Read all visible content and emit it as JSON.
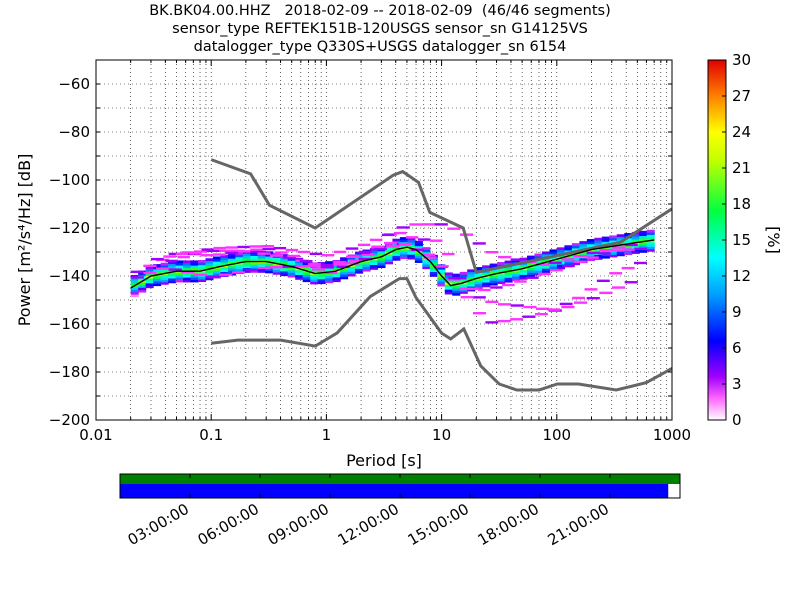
{
  "chart_data": {
    "type": "heatmap",
    "title_lines": [
      "BK.BK04.00.HHZ   2018-02-09 -- 2018-02-09  (46/46 segments)",
      "sensor_type REFTEK151B-120USGS sensor_sn G14125VS",
      "datalogger_type Q330S+USGS datalogger_sn 6154"
    ],
    "xlabel": "Period [s]",
    "ylabel": "Power [m²/s⁴/Hz] [dB]",
    "xscale": "log",
    "xlim": [
      0.01,
      1000
    ],
    "ylim": [
      -200,
      -50
    ],
    "x_ticks": [
      "0.01",
      "0.1",
      "1",
      "10",
      "100",
      "1000"
    ],
    "y_ticks": [
      "−60",
      "−80",
      "−100",
      "−120",
      "−140",
      "−160",
      "−180",
      "−200"
    ],
    "grid": true,
    "colorbar": {
      "label": "[%]",
      "range": [
        0,
        30
      ],
      "ticks": [
        "0",
        "3",
        "6",
        "9",
        "12",
        "15",
        "18",
        "21",
        "24",
        "27",
        "30"
      ]
    },
    "noise_model_high": {
      "x": [
        0.1,
        0.22,
        0.32,
        0.8,
        3.8,
        4.6,
        6.3,
        7.9,
        15.4,
        20,
        354.8,
        1000
      ],
      "y": [
        -91.5,
        -97.4,
        -110.5,
        -120,
        -98,
        -96.5,
        -101,
        -113.5,
        -120,
        -138.5,
        -126,
        -112
      ]
    },
    "noise_model_low": {
      "x": [
        0.1,
        0.17,
        0.4,
        0.8,
        1.24,
        2.4,
        4.3,
        5,
        6,
        10,
        12,
        15.6,
        21.9,
        31.6,
        45,
        70,
        101,
        154,
        328,
        600,
        1000
      ],
      "y": [
        -168,
        -166.7,
        -166.7,
        -169.2,
        -163.7,
        -148.6,
        -141.1,
        -141.1,
        -149,
        -163.8,
        -166.2,
        -162.1,
        -177.5,
        -185,
        -187.5,
        -187.5,
        -185,
        -185,
        -187.5,
        -184.4,
        -178.5
      ]
    },
    "mode_curve": {
      "x": [
        0.02,
        0.03,
        0.05,
        0.08,
        0.12,
        0.2,
        0.3,
        0.5,
        0.8,
        1.2,
        2,
        3,
        4,
        5,
        6,
        8,
        10,
        12,
        15,
        20,
        30,
        50,
        100,
        200,
        500,
        700
      ],
      "y": [
        -145,
        -140,
        -138,
        -138,
        -136,
        -134,
        -134,
        -136,
        -139,
        -138,
        -134,
        -132,
        -129,
        -128,
        -129,
        -134,
        -140,
        -144,
        -143,
        -141,
        -139,
        -137,
        -133,
        -129,
        -126,
        -125
      ]
    },
    "outlier_paths": [
      {
        "x": [
          0.02,
          0.05,
          0.1,
          0.2,
          0.5,
          1,
          2,
          4,
          8,
          12,
          20,
          30,
          50,
          100,
          200,
          500
        ],
        "y": [
          -140,
          -131,
          -130,
          -130,
          -133,
          -137,
          -131,
          -126,
          -132,
          -141,
          -149,
          -152,
          -153,
          -155,
          -150,
          -142
        ]
      },
      {
        "x": [
          0.03,
          0.06,
          0.1,
          0.3,
          0.6,
          1,
          3,
          5,
          8,
          12,
          18,
          25,
          40,
          80,
          150,
          300,
          600
        ],
        "y": [
          -134,
          -131,
          -132,
          -129,
          -133,
          -140,
          -129,
          -127,
          -133,
          -139,
          -152,
          -160,
          -159,
          -156,
          -150,
          -140,
          -134
        ]
      },
      {
        "x": [
          0.02,
          0.04,
          0.1,
          0.3,
          1,
          2,
          4,
          6,
          10,
          15,
          30,
          80,
          200,
          500
        ],
        "y": [
          -142,
          -137,
          -141,
          -137,
          -136,
          -135,
          -121,
          -119,
          -119,
          -122,
          -132,
          -136,
          -131,
          -127
        ]
      },
      {
        "x": [
          0.04,
          0.1,
          0.3,
          1,
          2,
          4,
          6,
          10,
          15,
          20,
          40,
          100,
          300,
          600
        ],
        "y": [
          -135,
          -129,
          -128,
          -132,
          -128,
          -122,
          -125,
          -126,
          -143,
          -147,
          -144,
          -138,
          -130,
          -129
        ]
      }
    ],
    "data_availability": {
      "time_ticks": [
        "03:00:00",
        "06:00:00",
        "09:00:00",
        "12:00:00",
        "15:00:00",
        "18:00:00",
        "21:00:00"
      ],
      "segments_fraction": 46,
      "segments_total": 46,
      "coverage_fraction": 0.979,
      "colors": {
        "data": "#0000ff",
        "segments": "#008000"
      }
    }
  }
}
